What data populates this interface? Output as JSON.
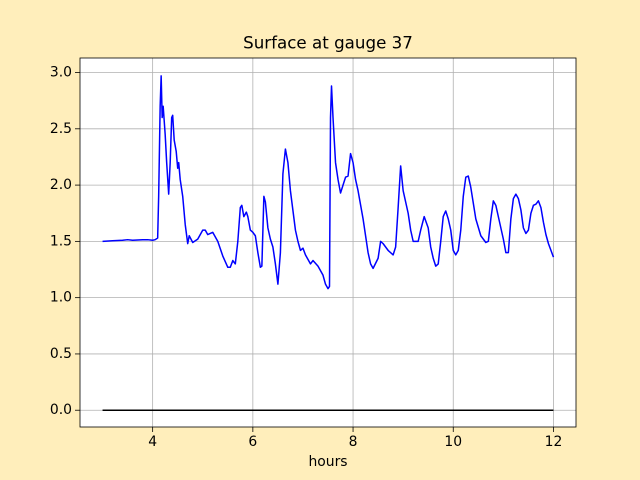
{
  "chart_data": {
    "type": "line",
    "title": "Surface at gauge 37",
    "x_label": "hours",
    "xlim": [
      2.55,
      12.45
    ],
    "xticks": [
      4,
      6,
      8,
      10,
      12
    ],
    "ylim": [
      -0.149,
      3.129
    ],
    "yticks": [
      {
        "value": 0,
        "label": "0.0"
      },
      {
        "value": 0.5,
        "label": "0.5"
      },
      {
        "value": 1,
        "label": "1.0"
      },
      {
        "value": 1.5,
        "label": "1.5"
      },
      {
        "value": 2,
        "label": "2.0"
      },
      {
        "value": 2.5,
        "label": "2.5"
      },
      {
        "value": 3,
        "label": "3.0"
      }
    ],
    "grid": true,
    "series": [
      {
        "color": "#0000ff",
        "x": [
          3.0,
          3.2,
          3.4,
          3.5,
          3.6,
          3.8,
          3.9,
          4.0,
          4.05,
          4.1,
          4.12,
          4.15,
          4.17,
          4.19,
          4.21,
          4.25,
          4.28,
          4.32,
          4.35,
          4.38,
          4.4,
          4.43,
          4.47,
          4.5,
          4.52,
          4.55,
          4.6,
          4.65,
          4.7,
          4.73,
          4.8,
          4.9,
          5.0,
          5.05,
          5.1,
          5.2,
          5.3,
          5.4,
          5.5,
          5.55,
          5.6,
          5.65,
          5.7,
          5.75,
          5.78,
          5.82,
          5.87,
          5.9,
          5.95,
          6.0,
          6.05,
          6.1,
          6.15,
          6.18,
          6.22,
          6.25,
          6.3,
          6.35,
          6.4,
          6.45,
          6.5,
          6.55,
          6.6,
          6.65,
          6.7,
          6.75,
          6.85,
          6.9,
          6.95,
          7.0,
          7.05,
          7.15,
          7.2,
          7.3,
          7.4,
          7.45,
          7.5,
          7.53,
          7.55,
          7.57,
          7.6,
          7.65,
          7.7,
          7.75,
          7.8,
          7.85,
          7.9,
          7.95,
          8.0,
          8.05,
          8.1,
          8.2,
          8.3,
          8.35,
          8.4,
          8.5,
          8.55,
          8.6,
          8.7,
          8.8,
          8.85,
          8.9,
          8.95,
          9.0,
          9.1,
          9.15,
          9.2,
          9.3,
          9.35,
          9.42,
          9.5,
          9.55,
          9.6,
          9.65,
          9.7,
          9.75,
          9.8,
          9.85,
          9.9,
          9.95,
          10.0,
          10.05,
          10.1,
          10.15,
          10.2,
          10.25,
          10.3,
          10.35,
          10.45,
          10.55,
          10.65,
          10.7,
          10.75,
          10.8,
          10.85,
          10.9,
          11.0,
          11.05,
          11.1,
          11.15,
          11.2,
          11.25,
          11.3,
          11.35,
          11.4,
          11.45,
          11.5,
          11.55,
          11.6,
          11.65,
          11.7,
          11.75,
          11.8,
          11.85,
          11.9,
          11.95,
          12.0
        ],
        "values": [
          1.5,
          1.505,
          1.51,
          1.515,
          1.51,
          1.515,
          1.515,
          1.51,
          1.515,
          1.53,
          1.9,
          2.7,
          2.97,
          2.6,
          2.7,
          2.45,
          2.2,
          1.92,
          2.2,
          2.6,
          2.62,
          2.4,
          2.3,
          2.15,
          2.2,
          2.05,
          1.9,
          1.65,
          1.48,
          1.55,
          1.49,
          1.52,
          1.6,
          1.6,
          1.56,
          1.58,
          1.5,
          1.37,
          1.27,
          1.27,
          1.33,
          1.3,
          1.5,
          1.8,
          1.82,
          1.72,
          1.76,
          1.72,
          1.6,
          1.58,
          1.55,
          1.4,
          1.27,
          1.28,
          1.9,
          1.85,
          1.62,
          1.52,
          1.45,
          1.3,
          1.12,
          1.4,
          2.1,
          2.32,
          2.2,
          1.95,
          1.6,
          1.5,
          1.42,
          1.44,
          1.38,
          1.3,
          1.33,
          1.28,
          1.2,
          1.12,
          1.08,
          1.1,
          2.6,
          2.88,
          2.6,
          2.2,
          2.05,
          1.93,
          2.0,
          2.07,
          2.08,
          2.28,
          2.2,
          2.05,
          1.95,
          1.7,
          1.4,
          1.3,
          1.26,
          1.35,
          1.5,
          1.48,
          1.42,
          1.38,
          1.45,
          1.8,
          2.17,
          1.95,
          1.75,
          1.6,
          1.5,
          1.5,
          1.6,
          1.72,
          1.62,
          1.45,
          1.35,
          1.28,
          1.3,
          1.5,
          1.72,
          1.77,
          1.7,
          1.6,
          1.42,
          1.38,
          1.42,
          1.6,
          1.9,
          2.07,
          2.08,
          1.98,
          1.7,
          1.55,
          1.49,
          1.5,
          1.7,
          1.86,
          1.82,
          1.72,
          1.52,
          1.4,
          1.4,
          1.7,
          1.88,
          1.92,
          1.88,
          1.78,
          1.62,
          1.57,
          1.6,
          1.75,
          1.82,
          1.83,
          1.86,
          1.8,
          1.67,
          1.56,
          1.48,
          1.42,
          1.36
        ]
      },
      {
        "color": "#000000",
        "x": [
          3,
          12
        ],
        "values": [
          0,
          0
        ]
      }
    ]
  }
}
